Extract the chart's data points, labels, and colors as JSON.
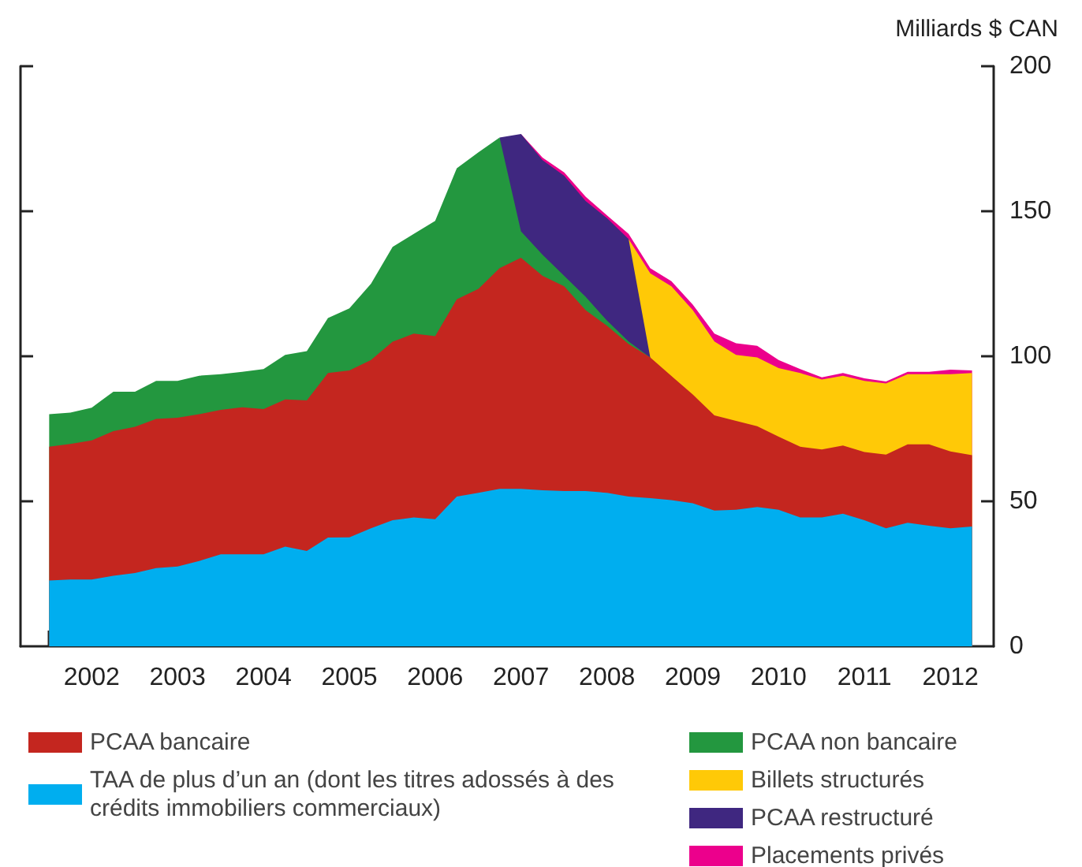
{
  "chart_data": {
    "type": "area",
    "stacked": true,
    "ylabel": "Milliards $ CAN",
    "legend": "bottom",
    "x": [
      "2002-01",
      "2002-04",
      "2002-07",
      "2002-10",
      "2003-01",
      "2003-04",
      "2003-07",
      "2003-10",
      "2004-01",
      "2004-04",
      "2004-07",
      "2004-10",
      "2005-01",
      "2005-04",
      "2005-07",
      "2005-10",
      "2006-01",
      "2006-04",
      "2006-07",
      "2006-10",
      "2007-01",
      "2007-04",
      "2007-07",
      "2007-10",
      "2008-01",
      "2008-04",
      "2008-07",
      "2008-10",
      "2009-01",
      "2009-04",
      "2009-07",
      "2009-10",
      "2010-01",
      "2010-04",
      "2010-07",
      "2010-10",
      "2011-01",
      "2011-04",
      "2011-07",
      "2011-10",
      "2012-01",
      "2012-04",
      "2012-07",
      "2012-10"
    ],
    "series": [
      {
        "name": "TAA de plus d’un an (dont les titres adossés à des crédits immobiliers commerciaux)",
        "color": "#00aeef",
        "values": [
          22.7,
          23,
          23,
          24.3,
          25.3,
          27,
          27.5,
          29.4,
          31.7,
          31.7,
          31.7,
          34.4,
          32.9,
          37.5,
          37.6,
          40.7,
          43.5,
          44.4,
          43.8,
          51.6,
          52.9,
          54.3,
          54.3,
          53.8,
          53.5,
          53.5,
          52.9,
          51.6,
          51.1,
          50.4,
          49.3,
          46.8,
          47.1,
          48,
          47.1,
          44.4,
          44.4,
          45.7,
          43.5,
          40.7,
          42.6,
          41.6,
          40.7,
          41.3
        ]
      },
      {
        "name": "PCAA bancaire",
        "color": "#c4261f",
        "values": [
          46.1,
          46.8,
          48,
          49.9,
          50.4,
          51.4,
          51.3,
          50.6,
          49.8,
          50.7,
          50.1,
          50.7,
          51.9,
          56.7,
          57.5,
          58,
          61.5,
          63.4,
          63.1,
          68,
          70.3,
          76.1,
          79.7,
          73.9,
          70.6,
          62.4,
          57.6,
          52.6,
          48.5,
          42.8,
          37.5,
          32.8,
          30.6,
          27.9,
          25.2,
          24.4,
          23.5,
          23.5,
          23.5,
          25.4,
          27,
          28,
          26.5,
          24.6
        ]
      },
      {
        "name": "PCAA non bancaire",
        "color": "#23973f",
        "values": [
          11.2,
          10.8,
          11.3,
          13.6,
          12.1,
          13.1,
          12.7,
          13.3,
          12.3,
          12.2,
          13.8,
          15.4,
          17,
          19,
          21.4,
          26.3,
          32.7,
          34.4,
          39.8,
          45.2,
          47.1,
          45,
          9.1,
          7.3,
          3.6,
          4.6,
          1.8,
          0.9,
          0,
          null,
          null,
          null,
          null,
          null,
          null,
          null,
          null,
          null,
          null,
          null,
          null,
          null,
          null,
          null
        ]
      },
      {
        "name": "PCAA restructuré",
        "color": "#3f2780",
        "values": [
          null,
          null,
          null,
          null,
          null,
          null,
          null,
          null,
          null,
          null,
          null,
          null,
          null,
          null,
          null,
          null,
          null,
          null,
          null,
          null,
          null,
          0,
          33.5,
          32.6,
          34.5,
          33,
          35.3,
          35.3,
          0,
          null,
          null,
          null,
          null,
          null,
          null,
          null,
          null,
          null,
          null,
          null,
          null,
          null,
          null,
          null
        ]
      },
      {
        "name": "Billets structurés",
        "color": "#ffc907",
        "values": [
          null,
          null,
          null,
          null,
          null,
          null,
          null,
          null,
          null,
          null,
          null,
          null,
          null,
          null,
          null,
          null,
          null,
          null,
          null,
          null,
          null,
          null,
          null,
          null,
          null,
          null,
          null,
          0,
          29,
          30.9,
          29.1,
          25.5,
          22.8,
          23.7,
          23.6,
          25.4,
          24.1,
          24.1,
          24.5,
          24.5,
          24.2,
          24.2,
          26.6,
          28.3
        ]
      },
      {
        "name": "Placements privés",
        "color": "#ec008c",
        "values": [
          null,
          null,
          null,
          null,
          null,
          null,
          null,
          null,
          null,
          null,
          null,
          null,
          null,
          null,
          null,
          null,
          null,
          null,
          null,
          null,
          null,
          null,
          0,
          0.9,
          1.2,
          1.5,
          1,
          1.8,
          1.8,
          1.8,
          1.9,
          2.7,
          4,
          4,
          2.8,
          1.4,
          0.7,
          0.9,
          0.9,
          0.7,
          0.8,
          0.8,
          1.6,
          0.9
        ]
      }
    ],
    "xlim": [
      "2001-09",
      "2013-01"
    ],
    "xticks": [
      {
        "value": "2002-01",
        "label": null
      },
      {
        "value": "2002-07",
        "label": "2002"
      },
      {
        "value": "2003-01",
        "label": null
      },
      {
        "value": "2003-07",
        "label": "2003"
      },
      {
        "value": "2004-01",
        "label": null
      },
      {
        "value": "2004-07",
        "label": "2004"
      },
      {
        "value": "2005-01",
        "label": null
      },
      {
        "value": "2005-07",
        "label": "2005"
      },
      {
        "value": "2006-01",
        "label": null
      },
      {
        "value": "2006-07",
        "label": "2006"
      },
      {
        "value": "2007-01",
        "label": null
      },
      {
        "value": "2007-07",
        "label": "2007"
      },
      {
        "value": "2008-01",
        "label": null
      },
      {
        "value": "2008-07",
        "label": "2008"
      },
      {
        "value": "2009-01",
        "label": null
      },
      {
        "value": "2009-07",
        "label": "2009"
      },
      {
        "value": "2010-01",
        "label": null
      },
      {
        "value": "2010-07",
        "label": "2010"
      },
      {
        "value": "2011-01",
        "label": null
      },
      {
        "value": "2011-07",
        "label": "2011"
      },
      {
        "value": "2012-01",
        "label": null
      },
      {
        "value": "2012-07",
        "label": "2012"
      }
    ],
    "ylim": [
      0,
      200
    ],
    "yticks": [
      0,
      50,
      100,
      150,
      200
    ]
  }
}
